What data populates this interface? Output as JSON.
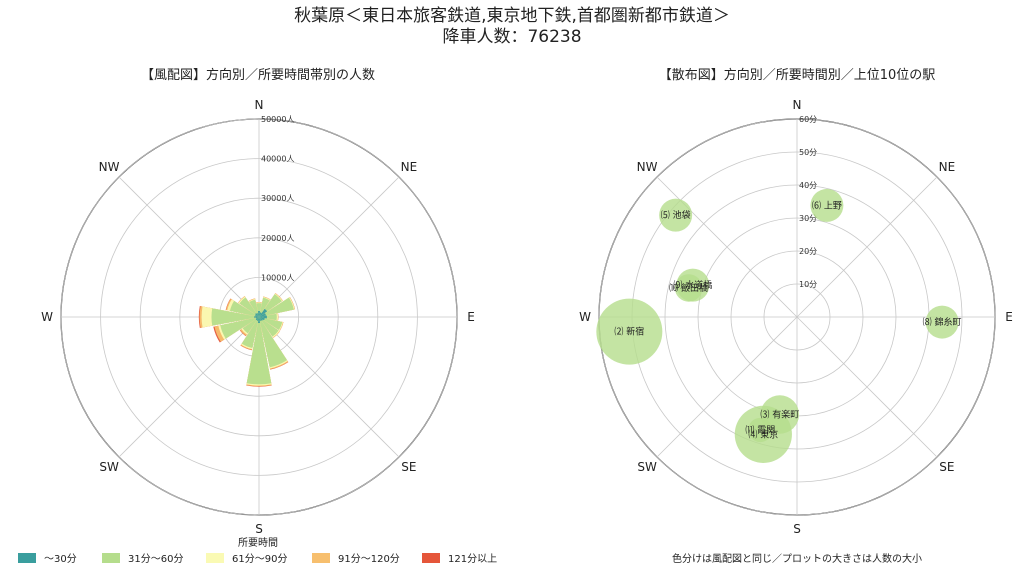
{
  "title_line1": "秋葉原＜東日本旅客鉄道,東京地下鉄,首都圏新都市鉄道＞",
  "title_line2": "降車人数：76238",
  "colors": {
    "bin1": "#3a9e9e",
    "bin2": "#b5dd8c",
    "bin3": "#fafab4",
    "bin4": "#f7bf6e",
    "bin5": "#e5563a"
  },
  "legend": {
    "title": "所要時間",
    "items": [
      "～30分",
      "31分～60分",
      "61分～90分",
      "91分～120分",
      "121分以上"
    ]
  },
  "note": "色分けは風配図と同じ／プロットの大きさは人数の大小",
  "chart_data": [
    {
      "type": "polar-bar",
      "title": "【風配図】方向別／所要時間帯別の人数",
      "directions": [
        "N",
        "NE",
        "E",
        "SE",
        "S",
        "SW",
        "W",
        "NW"
      ],
      "rlim": [
        0,
        50000
      ],
      "rticks": [
        10000,
        20000,
        30000,
        40000,
        50000
      ],
      "rtick_labels": [
        "10000人",
        "20000人",
        "30000人",
        "40000人",
        "50000人"
      ],
      "sector_degrees": [
        0,
        22.5,
        45,
        67.5,
        90,
        112.5,
        135,
        157.5,
        180,
        202.5,
        225,
        247.5,
        270,
        292.5,
        315,
        337.5
      ],
      "series": [
        {
          "name": "～30分",
          "values": [
            1500,
            1200,
            2500,
            1800,
            2000,
            1500,
            1200,
            1000,
            1500,
            1000,
            1000,
            800,
            1200,
            1000,
            1200,
            1000
          ]
        },
        {
          "name": "31分～60分",
          "values": [
            3500,
            5000,
            7000,
            9000,
            4500,
            6000,
            6000,
            13000,
            17000,
            8000,
            5000,
            10000,
            12000,
            7500,
            6000,
            4500
          ]
        },
        {
          "name": "61分～90分",
          "values": [
            3700,
            5200,
            7200,
            9200,
            4800,
            6200,
            6300,
            13300,
            17300,
            8300,
            5400,
            10500,
            14500,
            8200,
            6300,
            4700
          ]
        },
        {
          "name": "91分～120分",
          "values": [
            3800,
            5300,
            7300,
            9300,
            4900,
            6300,
            6400,
            13500,
            17500,
            8500,
            5800,
            11500,
            15000,
            8500,
            6400,
            4800
          ]
        },
        {
          "name": "121分以上",
          "values": [
            3800,
            5300,
            7300,
            9300,
            4900,
            6300,
            6400,
            13600,
            17600,
            8600,
            5900,
            11800,
            15200,
            8600,
            6400,
            4800
          ]
        }
      ]
    },
    {
      "type": "polar-scatter",
      "title": "【散布図】方向別／所要時間別／上位10位の駅",
      "directions": [
        "N",
        "NE",
        "E",
        "SE",
        "S",
        "SW",
        "W",
        "NW"
      ],
      "rlim": [
        0,
        60
      ],
      "rticks": [
        10,
        20,
        30,
        40,
        50,
        60
      ],
      "rtick_labels": [
        "10分",
        "20分",
        "30分",
        "40分",
        "50分",
        "60分"
      ],
      "points": [
        {
          "label": "⑵ 新宿",
          "bearing_deg": 265,
          "minutes": 51,
          "size": 6.0
        },
        {
          "label": "⑶ 有楽町",
          "bearing_deg": 190,
          "minutes": 30,
          "size": 3.5
        },
        {
          "label": "⑷ 東京",
          "bearing_deg": 196,
          "minutes": 37,
          "size": 5.2
        },
        {
          "label": "⑸ 池袋",
          "bearing_deg": 310,
          "minutes": 48,
          "size": 3.0
        },
        {
          "label": "⑹ 上野",
          "bearing_deg": 15,
          "minutes": 35,
          "size": 3.0
        },
        {
          "label": "⑻ 錦糸町",
          "bearing_deg": 92,
          "minutes": 44,
          "size": 3.0
        },
        {
          "label": "⑼ 水道橋",
          "bearing_deg": 287,
          "minutes": 33,
          "size": 3.0
        },
        {
          "label": "⑽ 飯田橋",
          "bearing_deg": 285,
          "minutes": 34,
          "size": 2.5
        },
        {
          "label": "⑾ 霞関",
          "bearing_deg": 198,
          "minutes": 36,
          "size": 2.2
        }
      ]
    }
  ]
}
